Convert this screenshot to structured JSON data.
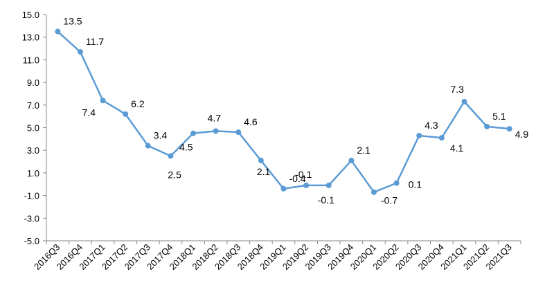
{
  "chart_data": {
    "type": "line",
    "title": "",
    "xlabel": "",
    "ylabel": "",
    "ylim": [
      -5.0,
      15.0
    ],
    "yticks": [
      "-5.0",
      "-3.0",
      "-1.0",
      "1.0",
      "3.0",
      "5.0",
      "7.0",
      "9.0",
      "11.0",
      "13.0",
      "15.0"
    ],
    "grid": false,
    "legend": "none",
    "line_color": "#5b9bd5",
    "categories": [
      "2016Q3",
      "2016Q4",
      "2017Q1",
      "2017Q2",
      "2017Q3",
      "2017Q4",
      "2018Q1",
      "2018Q2",
      "2018Q3",
      "2018Q4",
      "2019Q1",
      "2019Q2",
      "2019Q3",
      "2019Q4",
      "2020Q1",
      "2020Q2",
      "2020Q3",
      "2020Q4",
      "2021Q1",
      "2021Q2",
      "2021Q3"
    ],
    "series": [
      {
        "values": [
          13.5,
          11.7,
          7.4,
          6.2,
          3.4,
          2.5,
          4.5,
          4.7,
          4.6,
          2.1,
          -0.4,
          -0.1,
          -0.1,
          2.1,
          -0.7,
          0.1,
          4.3,
          4.1,
          7.3,
          5.1,
          4.9
        ],
        "labels": [
          "13.5",
          "11.7",
          "7.4",
          "6.2",
          "3.4",
          "2.5",
          "4.5",
          "4.7",
          "4.6",
          "2.1",
          "-0.4",
          "-0.1",
          "-0.1",
          "2.1",
          "-0.7",
          "0.1",
          "4.3",
          "4.1",
          "7.3",
          "5.1",
          "4.9"
        ]
      }
    ]
  }
}
